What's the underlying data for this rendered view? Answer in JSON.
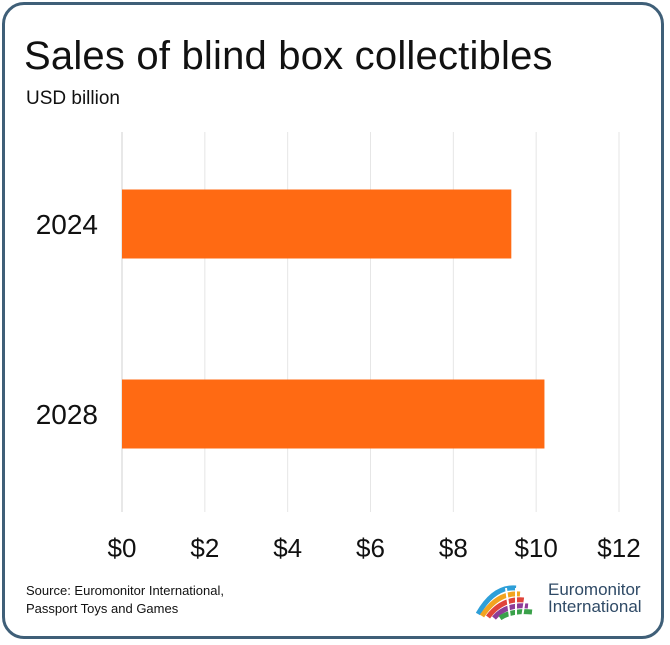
{
  "header": {
    "title": "Sales of blind box collectibles",
    "subtitle": "USD billion"
  },
  "chart_data": {
    "type": "bar",
    "orientation": "horizontal",
    "title": "Sales of blind box collectibles",
    "subtitle": "USD billion",
    "categories": [
      "2024",
      "2028"
    ],
    "values": [
      9.4,
      10.2
    ],
    "xlim": [
      0,
      12
    ],
    "x_ticks": [
      0,
      2,
      4,
      6,
      8,
      10,
      12
    ],
    "x_tick_labels": [
      "$0",
      "$2",
      "$4",
      "$6",
      "$8",
      "$10",
      "$12"
    ],
    "xlabel": "",
    "ylabel": "",
    "grid": "vertical",
    "bar_color": "#ff6a13"
  },
  "footer": {
    "source_line1": "Source: Euromonitor International,",
    "source_line2": "Passport Toys and Games",
    "logo_line1": "Euromonitor",
    "logo_line2": "International"
  },
  "colors": {
    "border": "#3f5f78",
    "grid": "#e6e6e6",
    "bar": "#ff6a13",
    "logo_text": "#2f4a66"
  }
}
